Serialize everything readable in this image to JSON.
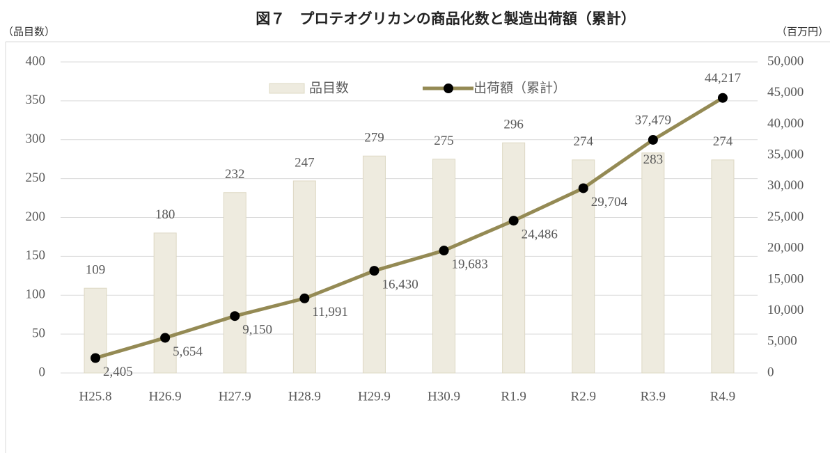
{
  "chart_data": {
    "type": "bar",
    "title": "図７　プロテオグリカンの商品化数と製造出荷額（累計）",
    "y_label": "（品目数）",
    "y2_label": "（百万円）",
    "categories": [
      "H25.8",
      "H26.9",
      "H27.9",
      "H28.9",
      "H29.9",
      "H30.9",
      "R1.9",
      "R2.9",
      "R3.9",
      "R4.9"
    ],
    "series": [
      {
        "name": "品目数",
        "type": "bar",
        "color": "#eeebdf",
        "values": [
          109,
          180,
          232,
          247,
          279,
          275,
          296,
          274,
          283,
          274
        ]
      },
      {
        "name": "出荷額（累計）",
        "type": "line",
        "axis": "y2",
        "color": "#948a54",
        "values": [
          2405,
          5654,
          9150,
          11991,
          16430,
          19683,
          24486,
          29704,
          37479,
          44217
        ],
        "value_labels": [
          "2,405",
          "5,654",
          "9,150",
          "11,991",
          "16,430",
          "19,683",
          "24,486",
          "29,704",
          "37,479",
          "44,217"
        ]
      }
    ],
    "ylim": [
      0,
      400
    ],
    "yticks": [
      0,
      50,
      100,
      150,
      200,
      250,
      300,
      350,
      400
    ],
    "y2lim": [
      0,
      50000
    ],
    "y2ticks": [
      0,
      {
        "value": 5000,
        "label": "5,000"
      },
      {
        "value": 10000,
        "label": "10,000"
      },
      {
        "value": 15000,
        "label": "15,000"
      },
      {
        "value": 20000,
        "label": "20,000"
      },
      {
        "value": 25000,
        "label": "25,000"
      },
      {
        "value": 30000,
        "label": "30,000"
      },
      {
        "value": 35000,
        "label": "35,000"
      },
      {
        "value": 40000,
        "label": "40,000"
      },
      {
        "value": 45000,
        "label": "45,000"
      },
      {
        "value": 50000,
        "label": "50,000"
      }
    ],
    "grid": true,
    "legend": "top"
  }
}
